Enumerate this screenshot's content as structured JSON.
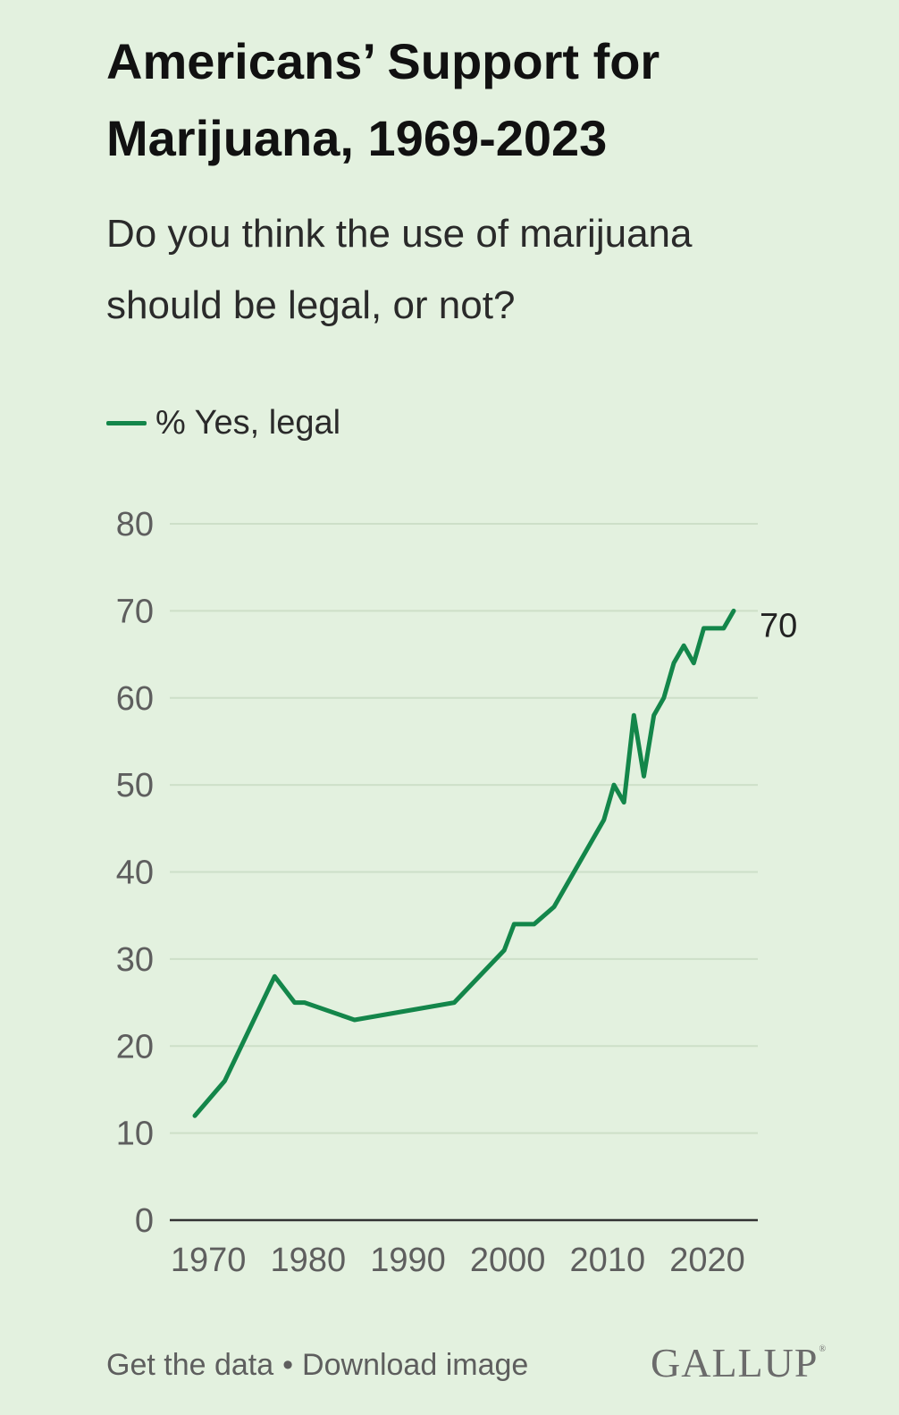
{
  "header": {
    "title_line1": "Americans’ Support for",
    "title_line2": "Marijuana, 1969-2023",
    "subtitle_line1": "Do you think the use of marijuana",
    "subtitle_line2": "should be legal, or not?"
  },
  "legend": {
    "label": "% Yes, legal",
    "color": "#13864a"
  },
  "footer": {
    "get_data": "Get the data",
    "separator": "•",
    "download": "Download image",
    "logo": "GALLUP",
    "logo_mark": "®"
  },
  "colors": {
    "background": "#e3f1df",
    "line": "#13864a",
    "grid": "#cddfc8",
    "axis": "#333333"
  },
  "chart_data": {
    "type": "line",
    "title": "Americans’ Support for Marijuana, 1969-2023",
    "subtitle": "Do you think the use of marijuana should be legal, or not?",
    "xlabel": "",
    "ylabel": "",
    "xlim": [
      1969,
      2023
    ],
    "ylim": [
      0,
      80
    ],
    "x_ticks": [
      1970,
      1980,
      1990,
      2000,
      2010,
      2020
    ],
    "y_ticks": [
      0,
      10,
      20,
      30,
      40,
      50,
      60,
      70,
      80
    ],
    "grid": true,
    "legend_position": "top-left",
    "end_label": "70",
    "series": [
      {
        "name": "% Yes, legal",
        "color": "#13864a",
        "x": [
          1969,
          1972,
          1977,
          1979,
          1980,
          1985,
          1995,
          2000,
          2001,
          2003,
          2005,
          2009,
          2010,
          2011,
          2012,
          2013,
          2014,
          2015,
          2016,
          2017,
          2018,
          2019,
          2020,
          2021,
          2022,
          2023
        ],
        "y": [
          12,
          16,
          28,
          25,
          25,
          23,
          25,
          31,
          34,
          34,
          36,
          44,
          46,
          50,
          48,
          58,
          51,
          58,
          60,
          64,
          66,
          64,
          68,
          68,
          68,
          70
        ]
      }
    ]
  }
}
